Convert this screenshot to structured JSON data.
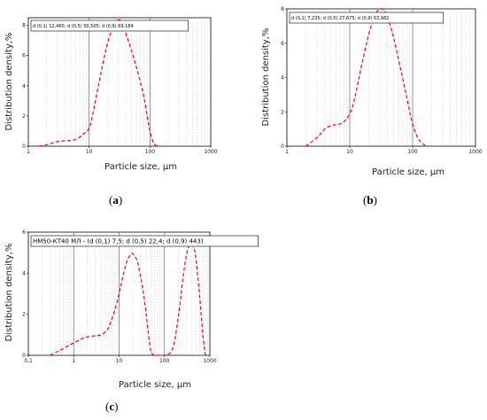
{
  "figure": {
    "panels": [
      {
        "label_prefix": "(",
        "label_letter": "a",
        "label_suffix": ")"
      },
      {
        "label_prefix": "(",
        "label_letter": "b",
        "label_suffix": ")"
      },
      {
        "label_prefix": "(",
        "label_letter": "c",
        "label_suffix": ")"
      }
    ]
  },
  "chart_data": [
    {
      "type": "line",
      "xlabel": "Particle size, μm",
      "ylabel": "Distribution density,%",
      "xscale": "log",
      "xlim": [
        1,
        1000
      ],
      "ylim": [
        0,
        8.5
      ],
      "xticks": [
        "1",
        "10",
        "100",
        "1000"
      ],
      "yticks": [
        "0",
        "2",
        "4",
        "6",
        "8"
      ],
      "annotation": "d (0,1) 12,460; d (0,5) 30,505; d (0,9) 69,184",
      "line_color": "#ff0000",
      "series": [
        {
          "x": [
            1.5,
            2,
            3,
            4,
            5,
            6,
            7,
            8,
            10,
            12,
            15,
            20,
            25,
            30,
            35,
            40,
            50,
            60,
            70,
            80,
            90,
            100,
            110,
            120,
            140
          ],
          "y": [
            0,
            0.1,
            0.3,
            0.35,
            0.38,
            0.45,
            0.6,
            0.8,
            1.2,
            2.5,
            4.5,
            6.8,
            7.9,
            8.35,
            8.2,
            7.5,
            6.3,
            5.2,
            4.2,
            3.2,
            2.0,
            1.0,
            0.4,
            0.1,
            0
          ]
        }
      ]
    },
    {
      "type": "line",
      "xlabel": "Particle size, μm",
      "ylabel": "Distribution density,%",
      "xscale": "log",
      "xlim": [
        1,
        1000
      ],
      "ylim": [
        0,
        8
      ],
      "xticks": [
        "1",
        "10",
        "100",
        "1000"
      ],
      "yticks": [
        "0",
        "2",
        "4",
        "6",
        "8"
      ],
      "annotation": "d (0,1) 7,235; d (0,5) 27,675; d (0,9) 63,982",
      "line_color": "#ff0000",
      "series": [
        {
          "x": [
            2,
            3,
            4,
            5,
            6,
            7,
            8,
            10,
            12,
            15,
            20,
            25,
            30,
            35,
            40,
            50,
            60,
            70,
            80,
            90,
            100,
            120,
            150,
            180
          ],
          "y": [
            0,
            0.5,
            1.0,
            1.2,
            1.25,
            1.3,
            1.4,
            1.9,
            2.8,
            4.5,
            6.5,
            7.6,
            8.0,
            7.9,
            7.5,
            6.3,
            5.0,
            3.9,
            2.9,
            2.0,
            1.3,
            0.5,
            0.1,
            0
          ]
        }
      ]
    },
    {
      "type": "line",
      "xlabel": "Particle size, μm",
      "ylabel": "Distribution density,%",
      "xscale": "log",
      "xlim": [
        0.1,
        1000
      ],
      "ylim": [
        0,
        6
      ],
      "xticks": [
        "0,1",
        "1",
        "10",
        "100",
        "1000"
      ],
      "yticks": [
        "0",
        "2",
        "4",
        "6"
      ],
      "annotation": "НМ50-КТ40 МЛ - (d (0,1) 7,5; d (0,5) 22,4; d (0,9) 443)",
      "line_color": "#ff0000",
      "series": [
        {
          "x": [
            0.3,
            0.5,
            0.8,
            1,
            1.5,
            2,
            3,
            4,
            5,
            6,
            8,
            10,
            12,
            15,
            18,
            20,
            25,
            30,
            35,
            40,
            45,
            50,
            60,
            80,
            100,
            150,
            200,
            250,
            300,
            350,
            400,
            450,
            500,
            600,
            700,
            800
          ],
          "y": [
            0,
            0.25,
            0.5,
            0.6,
            0.8,
            0.9,
            0.95,
            1.0,
            1.15,
            1.4,
            2.2,
            3.0,
            3.8,
            4.6,
            4.9,
            4.95,
            4.6,
            3.8,
            2.9,
            1.9,
            0.9,
            0.2,
            0,
            0,
            0,
            0.3,
            1.8,
            3.6,
            4.8,
            5.35,
            5.4,
            5.2,
            4.6,
            2.8,
            1.0,
            0
          ]
        }
      ]
    }
  ]
}
